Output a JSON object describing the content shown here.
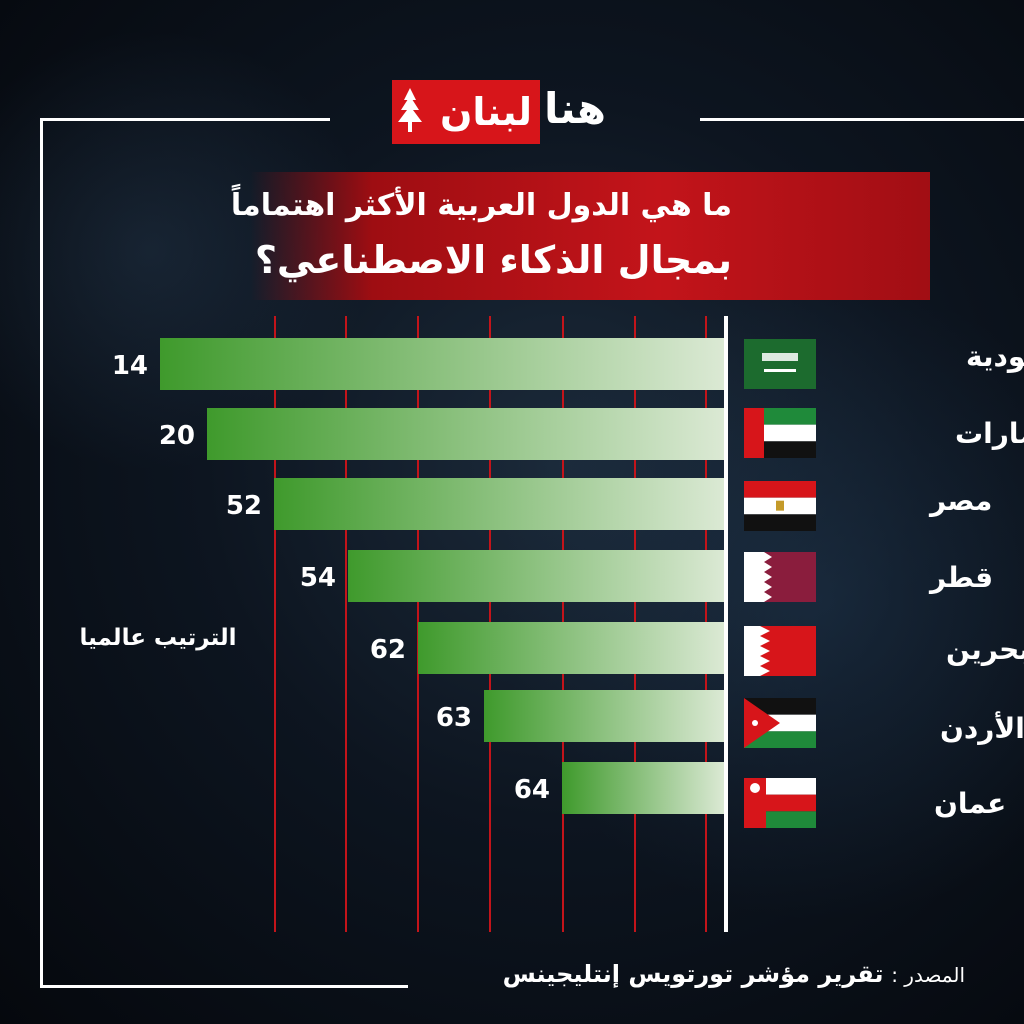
{
  "brand": {
    "logo_part1": "لبنان",
    "logo_part2": "هنا"
  },
  "title": {
    "line1": "ما هي الدول العربية الأكثر اهتماماً",
    "line2": "بمجال الذكاء الاصطناعي؟"
  },
  "colors": {
    "accent_red": "#c3141a",
    "bar_dark": "#3f9a2c",
    "bar_light": "#dbe9d4",
    "grid": "#c3141a"
  },
  "chart_data": {
    "type": "bar",
    "orientation": "horizontal",
    "value_label": "الترتيب عالميا",
    "categories": [
      "السعودية",
      "الإمارات",
      "مصر",
      "قطر",
      "البحرين",
      "الأردن",
      "عمان"
    ],
    "flags": [
      "saudi-flag-icon",
      "uae-flag-icon",
      "egypt-flag-icon",
      "qatar-flag-icon",
      "bahrain-flag-icon",
      "jordan-flag-icon",
      "oman-flag-icon"
    ],
    "values": [
      14,
      20,
      52,
      54,
      62,
      63,
      64
    ],
    "grid": true
  },
  "source": {
    "label": "المصدر :",
    "value": "تقرير مؤشر تورتويس إنتليجينس"
  }
}
